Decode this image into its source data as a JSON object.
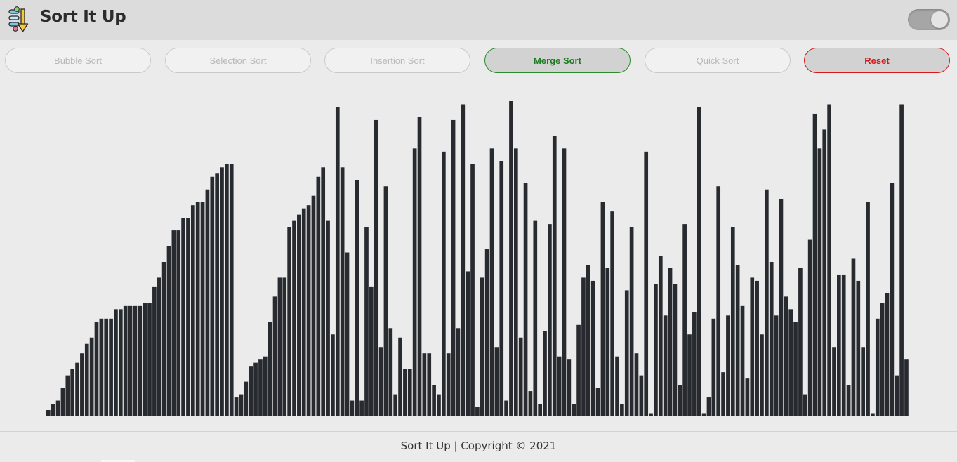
{
  "app": {
    "title": "Sort It Up"
  },
  "theme_toggle": {
    "state": "on"
  },
  "controls": {
    "buttons": [
      {
        "label": "Bubble Sort",
        "state": "disabled"
      },
      {
        "label": "Selection Sort",
        "state": "disabled"
      },
      {
        "label": "Insertion Sort",
        "state": "disabled"
      },
      {
        "label": "Merge Sort",
        "state": "active"
      },
      {
        "label": "Quick Sort",
        "state": "disabled"
      },
      {
        "label": "Reset",
        "state": "enabled"
      }
    ]
  },
  "colors": {
    "bar": "#272b30",
    "active": "#1e7a1e",
    "reset": "#d61818",
    "header_bg": "#dcdcdc",
    "page_bg": "#ebebeb"
  },
  "chart_data": {
    "type": "bar",
    "ylim": [
      0,
      100
    ],
    "values": [
      2,
      4,
      5,
      9,
      13,
      15,
      17,
      20,
      23,
      25,
      30,
      31,
      31,
      31,
      34,
      34,
      35,
      35,
      35,
      35,
      36,
      36,
      41,
      44,
      49,
      54,
      59,
      59,
      63,
      63,
      67,
      68,
      68,
      72,
      76,
      77,
      79,
      80,
      80,
      6,
      7,
      11,
      16,
      17,
      18,
      19,
      30,
      38,
      44,
      44,
      60,
      62,
      64,
      66,
      67,
      70,
      76,
      79,
      62,
      26,
      98,
      79,
      52,
      5,
      75,
      5,
      60,
      41,
      94,
      22,
      73,
      28,
      7,
      25,
      15,
      15,
      85,
      95,
      20,
      20,
      10,
      7,
      84,
      20,
      94,
      28,
      99,
      46,
      80,
      3,
      44,
      53,
      85,
      22,
      81,
      5,
      100,
      85,
      25,
      74,
      8,
      62,
      4,
      27,
      61,
      89,
      19,
      85,
      18,
      4,
      29,
      44,
      48,
      43,
      9,
      68,
      47,
      65,
      19,
      4,
      40,
      60,
      20,
      13,
      84,
      1,
      42,
      51,
      32,
      47,
      42,
      10,
      61,
      26,
      33,
      98,
      1,
      6,
      31,
      73,
      14,
      32,
      60,
      48,
      35,
      12,
      44,
      43,
      26,
      72,
      49,
      32,
      69,
      38,
      34,
      30,
      47,
      7,
      56,
      96,
      85,
      91,
      99,
      22,
      45,
      45,
      10,
      50,
      43,
      22,
      68,
      1,
      31,
      36,
      39,
      74,
      13,
      99,
      18
    ]
  },
  "footer": {
    "text": "Sort It Up | Copyright © 2021"
  }
}
